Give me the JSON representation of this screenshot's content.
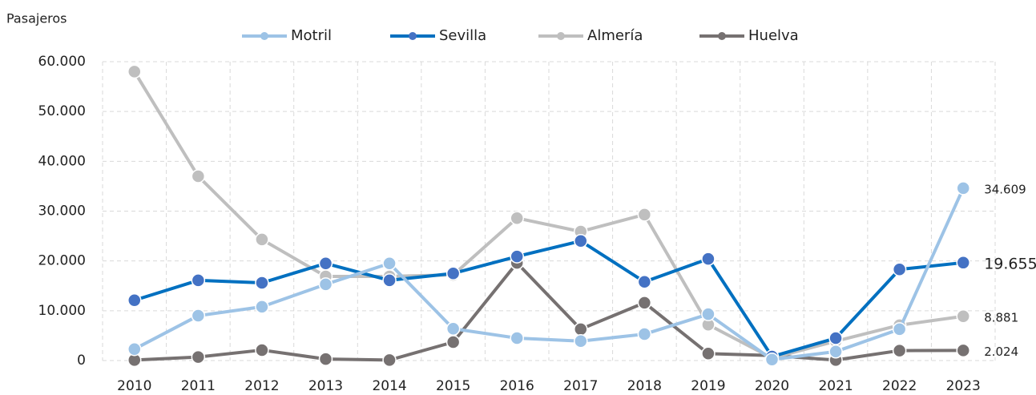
{
  "chart_data": {
    "type": "line",
    "y_axis_label": "Pasajeros",
    "categories": [
      "2010",
      "2011",
      "2012",
      "2013",
      "2014",
      "2015",
      "2016",
      "2017",
      "2018",
      "2019",
      "2020",
      "2021",
      "2022",
      "2023"
    ],
    "ylim": [
      0,
      60000
    ],
    "yticks": [
      0,
      {
        "value": 10000,
        "label": "10.000"
      },
      {
        "value": 20000,
        "label": "20.000"
      },
      {
        "value": 30000,
        "label": "30.000"
      },
      {
        "value": 40000,
        "label": "40.000"
      },
      {
        "value": 50000,
        "label": "50.000"
      },
      {
        "value": 60000,
        "label": "60.000"
      }
    ],
    "grid": true,
    "legend": "top",
    "series": [
      {
        "name": "Motril",
        "color": "#9dc3e6",
        "marker_color": "#9dc3e6",
        "values": [
          2300,
          9000,
          10800,
          15300,
          19500,
          6400,
          4500,
          3900,
          5300,
          9300,
          200,
          1800,
          6300,
          34609
        ],
        "value_labels": [
          null,
          null,
          null,
          null,
          null,
          null,
          null,
          null,
          null,
          null,
          null,
          null,
          null,
          "34.609"
        ]
      },
      {
        "name": "Sevilla",
        "color": "#0070c0",
        "marker_color": "#4472c4",
        "values": [
          12100,
          16100,
          15600,
          19500,
          16100,
          17500,
          20900,
          24000,
          15800,
          20400,
          800,
          4500,
          18300,
          19655
        ],
        "value_labels": [
          null,
          null,
          null,
          null,
          null,
          null,
          null,
          null,
          null,
          null,
          null,
          null,
          null,
          "19.655"
        ]
      },
      {
        "name": "Almería",
        "color": "#bfbfbf",
        "marker_color": "#bfbfbf",
        "values": [
          58000,
          37000,
          24300,
          16900,
          16900,
          17200,
          28600,
          25900,
          29300,
          7200,
          500,
          3900,
          7100,
          8881
        ],
        "value_labels": [
          null,
          null,
          null,
          null,
          null,
          null,
          null,
          null,
          null,
          null,
          null,
          null,
          null,
          "8.881"
        ]
      },
      {
        "name": "Huelva",
        "color": "#767171",
        "marker_color": "#767171",
        "values": [
          100,
          700,
          2100,
          300,
          100,
          3700,
          19600,
          6300,
          11600,
          1400,
          1000,
          100,
          2000,
          2024
        ],
        "value_labels": [
          null,
          null,
          null,
          null,
          null,
          null,
          null,
          null,
          null,
          null,
          null,
          null,
          null,
          "2.024"
        ]
      }
    ]
  }
}
